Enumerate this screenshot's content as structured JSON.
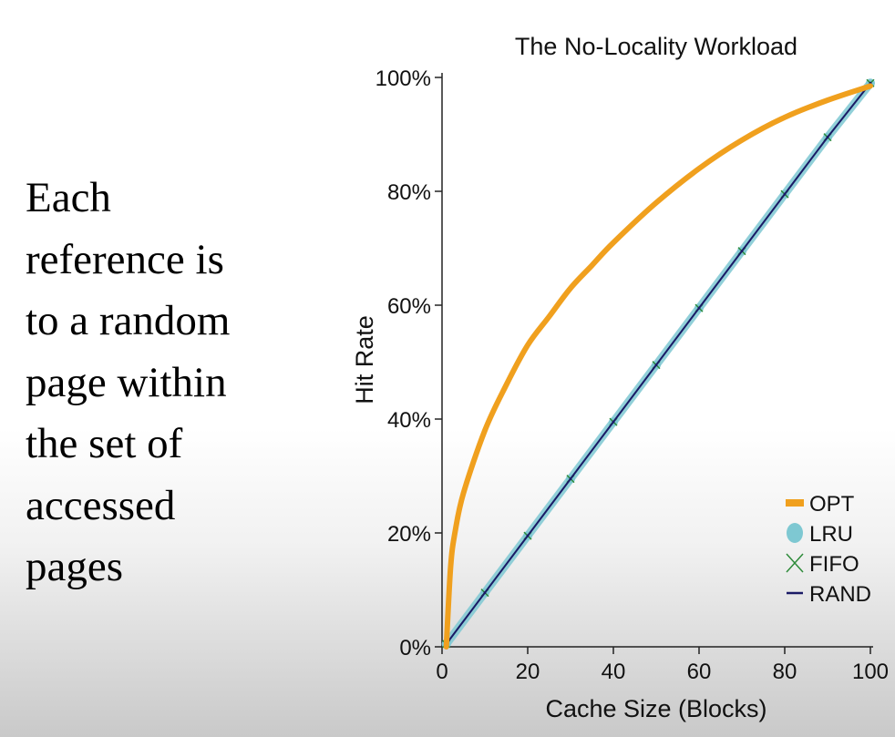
{
  "slide": {
    "text_lines": [
      "Each",
      "reference is",
      "to a random",
      "page within",
      "the set of",
      "accessed",
      "pages"
    ]
  },
  "chart_data": {
    "type": "line",
    "title": "The No-Locality Workload",
    "xlabel": "Cache Size (Blocks)",
    "ylabel": "Hit Rate",
    "xlim": [
      0,
      100
    ],
    "ylim": [
      0,
      100
    ],
    "x_ticks": [
      0,
      20,
      40,
      60,
      80,
      100
    ],
    "x_tick_labels": [
      "0",
      "20",
      "40",
      "60",
      "80",
      "100"
    ],
    "y_ticks": [
      0,
      20,
      40,
      60,
      80,
      100
    ],
    "y_tick_labels": [
      "0%",
      "20%",
      "40%",
      "60%",
      "80%",
      "100%"
    ],
    "y_unit": "%",
    "grid": false,
    "legend_position": "bottom-right",
    "series": [
      {
        "name": "OPT",
        "color": "#f0a01e",
        "marker": "thick-line",
        "x": [
          1,
          2,
          3,
          5,
          10,
          15,
          20,
          25,
          30,
          35,
          40,
          50,
          60,
          70,
          80,
          90,
          100
        ],
        "y": [
          0,
          14,
          20,
          27,
          38,
          46,
          53,
          58,
          63,
          67,
          71,
          78,
          84,
          89,
          93,
          96,
          98.5
        ]
      },
      {
        "name": "LRU",
        "color": "#7ec8d2",
        "marker": "circle",
        "x": [
          1,
          10,
          20,
          30,
          40,
          50,
          60,
          70,
          80,
          90,
          100
        ],
        "y": [
          0.5,
          9.5,
          19.5,
          29.5,
          39.5,
          49.5,
          59.5,
          69.5,
          79.5,
          89.5,
          99
        ]
      },
      {
        "name": "FIFO",
        "color": "#2e8b3a",
        "marker": "x",
        "x": [
          1,
          10,
          20,
          30,
          40,
          50,
          60,
          70,
          80,
          90,
          100
        ],
        "y": [
          0.5,
          9.5,
          19.5,
          29.5,
          39.5,
          49.5,
          59.5,
          69.5,
          79.5,
          89.5,
          99
        ]
      },
      {
        "name": "RAND",
        "color": "#1a1a66",
        "marker": "line",
        "x": [
          1,
          10,
          20,
          30,
          40,
          50,
          60,
          70,
          80,
          90,
          100
        ],
        "y": [
          0.5,
          9.5,
          19.5,
          29.5,
          39.5,
          49.5,
          59.5,
          69.5,
          79.5,
          89.5,
          99
        ]
      }
    ]
  }
}
